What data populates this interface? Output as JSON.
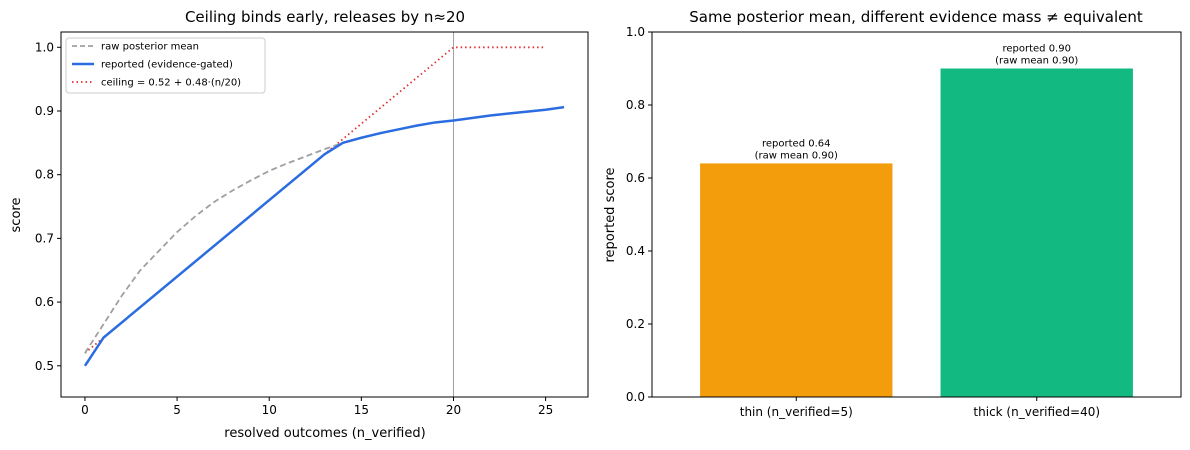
{
  "chart_data": [
    {
      "type": "line",
      "title": "Ceiling binds early, releases by n≈20",
      "xlabel": "resolved outcomes (n_verified)",
      "ylabel": "score",
      "xlim": [
        -1.3,
        27.3
      ],
      "ylim": [
        0.451,
        1.024
      ],
      "xticks": [
        0,
        5,
        10,
        15,
        20,
        25
      ],
      "yticks": [
        0.5,
        0.6,
        0.7,
        0.8,
        0.9,
        1.0
      ],
      "grid": false,
      "legend_position": "top-left",
      "vline_x": 20,
      "series": [
        {
          "name": "raw posterior mean",
          "style": "dashed",
          "color": "#a0a0a0",
          "x": [
            0,
            1,
            2,
            3,
            4,
            5,
            6,
            7,
            8,
            9,
            10,
            11,
            12,
            13,
            14
          ],
          "y": [
            0.52,
            0.565,
            0.61,
            0.65,
            0.68,
            0.71,
            0.735,
            0.757,
            0.775,
            0.791,
            0.806,
            0.818,
            0.829,
            0.84,
            0.85
          ]
        },
        {
          "name": "reported (evidence-gated)",
          "style": "solid",
          "color": "#2b6de0",
          "x": [
            0,
            1,
            13,
            14,
            15,
            16,
            17,
            18,
            19,
            20,
            21,
            22,
            23,
            24,
            25,
            26
          ],
          "y": [
            0.5,
            0.544,
            0.832,
            0.85,
            0.858,
            0.865,
            0.871,
            0.877,
            0.882,
            0.885,
            0.889,
            0.893,
            0.896,
            0.899,
            0.902,
            0.906
          ]
        },
        {
          "name": "ceiling = 0.52 + 0.48·(n/20)",
          "style": "dotted",
          "color": "#e03030",
          "x": [
            0,
            20,
            25
          ],
          "y": [
            0.52,
            1.0,
            1.0
          ]
        }
      ]
    },
    {
      "type": "bar",
      "title": "Same posterior mean, different evidence mass ≠ equivalent",
      "xlabel": "",
      "ylabel": "reported score",
      "ylim": [
        0,
        1.0
      ],
      "yticks": [
        0.0,
        0.2,
        0.4,
        0.6,
        0.8,
        1.0
      ],
      "grid": false,
      "categories": [
        "thin (n_verified=5)",
        "thick (n_verified=40)"
      ],
      "values": [
        0.64,
        0.9
      ],
      "colors": [
        "#f39c0c",
        "#12b981"
      ],
      "annotations": [
        [
          "reported 0.64",
          "(raw mean 0.90)"
        ],
        [
          "reported 0.90",
          "(raw mean 0.90)"
        ]
      ]
    }
  ]
}
